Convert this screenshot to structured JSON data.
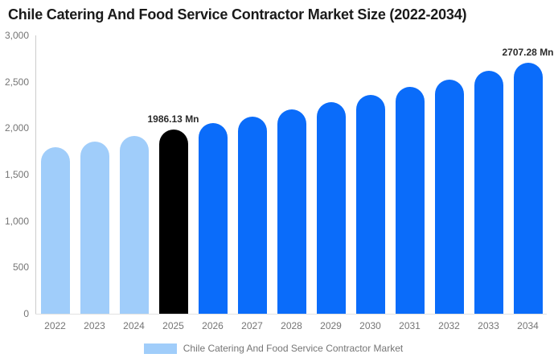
{
  "header": {
    "title": "Chile Catering And Food Service Contractor Market Size (2022-2034)"
  },
  "colors": {
    "historical_bar": "#A0CDFA",
    "highlight_bar": "#000000",
    "forecast_bar": "#0A6CFA",
    "axis_line": "#cccccc",
    "baseline": "#e2e2e2",
    "tick_text": "#757575",
    "value_label_text": "#2b2b2b",
    "title_text": "#1a1a1a"
  },
  "chart_data": {
    "type": "bar",
    "title": "Chile Catering And Food Service Contractor Market Size (2022-2034)",
    "xlabel": "",
    "ylabel": "",
    "unit": "Mn",
    "categories": [
      "2022",
      "2023",
      "2024",
      "2025",
      "2026",
      "2027",
      "2028",
      "2029",
      "2030",
      "2031",
      "2032",
      "2033",
      "2034"
    ],
    "values": [
      1791.55,
      1854.25,
      1919.16,
      1986.13,
      2055.65,
      2127.59,
      2202.06,
      2279.13,
      2358.9,
      2441.46,
      2526.91,
      2615.35,
      2707.28
    ],
    "bar_colors": [
      "#A0CDFA",
      "#A0CDFA",
      "#A0CDFA",
      "#000000",
      "#0A6CFA",
      "#0A6CFA",
      "#0A6CFA",
      "#0A6CFA",
      "#0A6CFA",
      "#0A6CFA",
      "#0A6CFA",
      "#0A6CFA",
      "#0A6CFA"
    ],
    "data_labels": [
      "",
      "",
      "",
      "1986.13 Mn",
      "",
      "",
      "",
      "",
      "",
      "",
      "",
      "",
      "2707.28 Mn"
    ],
    "ylim": [
      0,
      3000
    ],
    "yticks": [
      {
        "value": 0,
        "label": "0"
      },
      {
        "value": 500,
        "label": "500"
      },
      {
        "value": 1000,
        "label": "1,000"
      },
      {
        "value": 1500,
        "label": "1,500"
      },
      {
        "value": 2000,
        "label": "2,000"
      },
      {
        "value": 2500,
        "label": "2,500"
      },
      {
        "value": 3000,
        "label": "3,000"
      }
    ],
    "grid": false,
    "legend_position": "bottom-center",
    "legend": [
      {
        "label": "Chile Catering And Food Service Contractor Market",
        "color": "#A0CDFA"
      }
    ]
  }
}
